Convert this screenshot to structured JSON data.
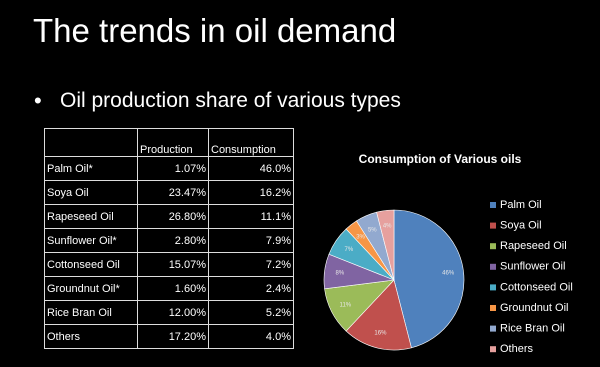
{
  "header": {
    "title": "The trends in oil demand",
    "bullet": "Oil production share of various types"
  },
  "table": {
    "header": [
      "Production",
      "Consumption"
    ],
    "rows": [
      [
        "Palm Oil*",
        "1.07%",
        "46.0%"
      ],
      [
        "Soya Oil",
        "23.47%",
        "16.2%"
      ],
      [
        "Rapeseed Oil",
        "26.80%",
        "11.1%"
      ],
      [
        "Sunflower Oil*",
        "2.80%",
        "7.9%"
      ],
      [
        "Cottonseed Oil",
        "15.07%",
        "7.2%"
      ],
      [
        "Groundnut Oil*",
        "1.60%",
        "2.4%"
      ],
      [
        "Rice Bran Oil",
        "12.00%",
        "5.2%"
      ],
      [
        "Others",
        "17.20%",
        "4.0%"
      ]
    ]
  },
  "chart_data": {
    "type": "pie",
    "title": "Consumption of Various oils",
    "categories": [
      "Palm Oil",
      "Soya Oil",
      "Rapeseed Oil",
      "Sunflower Oil",
      "Cottonseed Oil",
      "Groundnut Oil",
      "Rice Bran Oil",
      "Others"
    ],
    "values": [
      46,
      16,
      11,
      8,
      7,
      3,
      5,
      4
    ],
    "value_labels": [
      "46%",
      "16%",
      "11%",
      "8%",
      "7%",
      "3%",
      "5%",
      "4%"
    ],
    "colors": [
      "#4f81bd",
      "#c0504d",
      "#9bbb59",
      "#8064a2",
      "#4bacc6",
      "#f79646",
      "#92a9cf",
      "#e6a09e"
    ],
    "legend": "right"
  }
}
